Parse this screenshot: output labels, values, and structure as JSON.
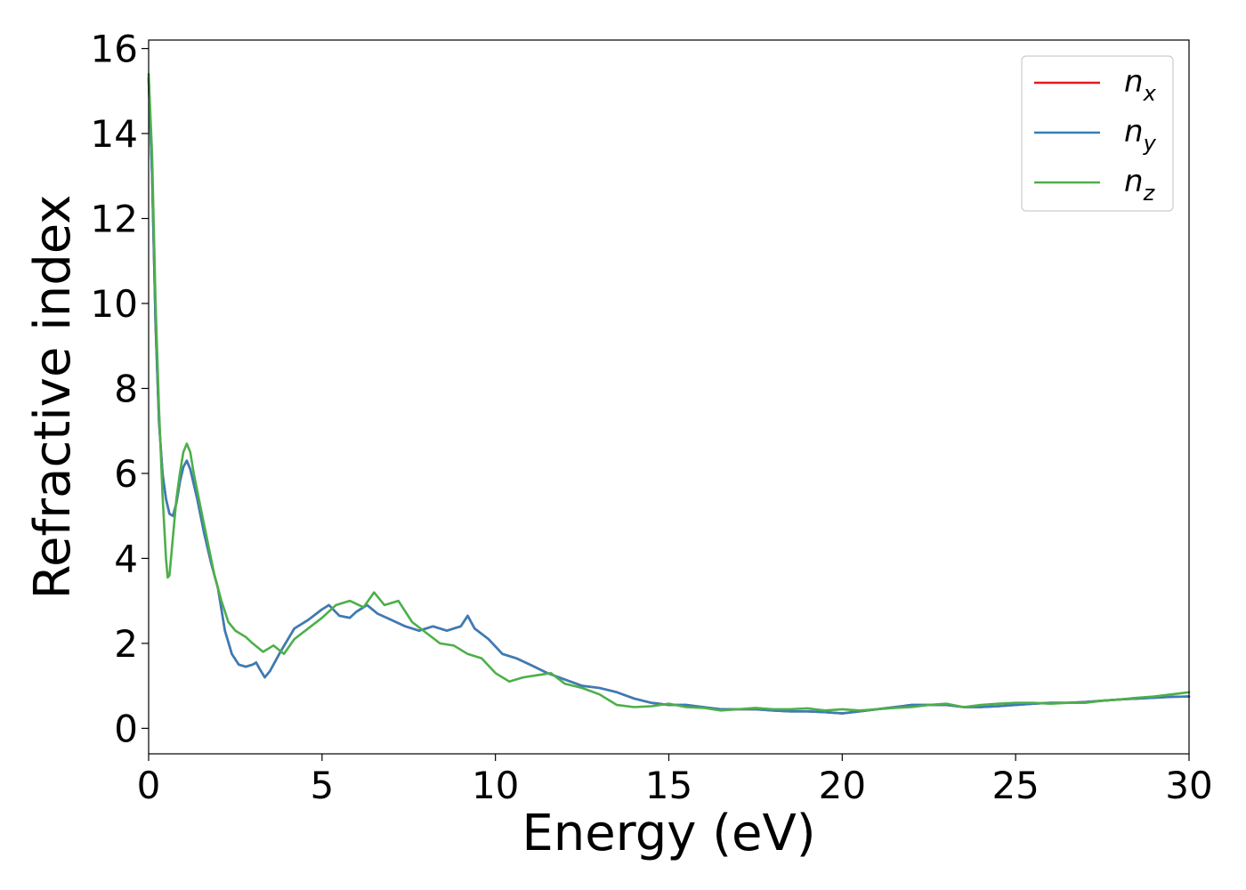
{
  "chart_data": {
    "type": "line",
    "title": "",
    "xlabel": "Energy (eV)",
    "ylabel": "Refractive index",
    "xlim": [
      0,
      30
    ],
    "ylim": [
      -0.6,
      16.2
    ],
    "xticks": [
      0,
      5,
      10,
      15,
      20,
      25,
      30
    ],
    "yticks": [
      0,
      2,
      4,
      6,
      8,
      10,
      12,
      14,
      16
    ],
    "grid": false,
    "legend_position": "top-right",
    "series": [
      {
        "name": "n_x",
        "legend_base": "n",
        "legend_sub": "x",
        "color": "#e41a1c",
        "x": [
          0,
          0.1,
          0.2,
          0.3,
          0.4,
          0.5,
          0.6,
          0.7,
          0.8,
          0.9,
          1.0,
          1.1,
          1.2,
          1.4,
          1.6,
          1.8,
          2.0,
          2.2,
          2.4,
          2.6,
          2.8,
          3.0,
          3.1,
          3.2,
          3.35,
          3.5,
          3.8,
          4.2,
          4.6,
          5.0,
          5.2,
          5.5,
          5.8,
          6.0,
          6.3,
          6.6,
          7.0,
          7.4,
          7.8,
          8.2,
          8.6,
          9.0,
          9.2,
          9.4,
          9.8,
          10.2,
          10.6,
          11.0,
          11.5,
          12.0,
          12.5,
          13.0,
          13.5,
          14.0,
          14.5,
          15.0,
          15.5,
          16.0,
          16.5,
          17.0,
          17.5,
          18.0,
          18.5,
          19.0,
          19.5,
          20.0,
          20.5,
          21.0,
          21.5,
          22.0,
          22.5,
          23.0,
          23.5,
          24.0,
          24.5,
          25.0,
          25.5,
          26.0,
          26.5,
          27.0,
          27.5,
          28.0,
          28.5,
          29.0,
          29.5,
          30.0
        ],
        "y": [
          15.3,
          13.0,
          9.5,
          7.2,
          6.0,
          5.4,
          5.05,
          5.0,
          5.3,
          5.8,
          6.15,
          6.3,
          6.1,
          5.4,
          4.6,
          3.9,
          3.3,
          2.3,
          1.75,
          1.5,
          1.45,
          1.5,
          1.55,
          1.4,
          1.2,
          1.35,
          1.8,
          2.35,
          2.55,
          2.8,
          2.9,
          2.65,
          2.6,
          2.75,
          2.9,
          2.7,
          2.55,
          2.4,
          2.3,
          2.4,
          2.3,
          2.4,
          2.65,
          2.35,
          2.1,
          1.75,
          1.65,
          1.5,
          1.3,
          1.15,
          1.0,
          0.95,
          0.85,
          0.7,
          0.6,
          0.55,
          0.55,
          0.5,
          0.45,
          0.45,
          0.45,
          0.42,
          0.4,
          0.4,
          0.38,
          0.35,
          0.4,
          0.45,
          0.5,
          0.55,
          0.55,
          0.55,
          0.5,
          0.5,
          0.52,
          0.55,
          0.58,
          0.6,
          0.6,
          0.62,
          0.65,
          0.68,
          0.7,
          0.72,
          0.74,
          0.75
        ]
      },
      {
        "name": "n_y",
        "legend_base": "n",
        "legend_sub": "y",
        "color": "#377eb8",
        "x": [
          0,
          0.1,
          0.2,
          0.3,
          0.4,
          0.5,
          0.6,
          0.7,
          0.8,
          0.9,
          1.0,
          1.1,
          1.2,
          1.4,
          1.6,
          1.8,
          2.0,
          2.2,
          2.4,
          2.6,
          2.8,
          3.0,
          3.1,
          3.2,
          3.35,
          3.5,
          3.8,
          4.2,
          4.6,
          5.0,
          5.2,
          5.5,
          5.8,
          6.0,
          6.3,
          6.6,
          7.0,
          7.4,
          7.8,
          8.2,
          8.6,
          9.0,
          9.2,
          9.4,
          9.8,
          10.2,
          10.6,
          11.0,
          11.5,
          12.0,
          12.5,
          13.0,
          13.5,
          14.0,
          14.5,
          15.0,
          15.5,
          16.0,
          16.5,
          17.0,
          17.5,
          18.0,
          18.5,
          19.0,
          19.5,
          20.0,
          20.5,
          21.0,
          21.5,
          22.0,
          22.5,
          23.0,
          23.5,
          24.0,
          24.5,
          25.0,
          25.5,
          26.0,
          26.5,
          27.0,
          27.5,
          28.0,
          28.5,
          29.0,
          29.5,
          30.0
        ],
        "y": [
          15.3,
          13.0,
          9.5,
          7.2,
          6.0,
          5.4,
          5.05,
          5.0,
          5.3,
          5.8,
          6.15,
          6.3,
          6.1,
          5.4,
          4.6,
          3.9,
          3.3,
          2.3,
          1.75,
          1.5,
          1.45,
          1.5,
          1.55,
          1.4,
          1.2,
          1.35,
          1.8,
          2.35,
          2.55,
          2.8,
          2.9,
          2.65,
          2.6,
          2.75,
          2.9,
          2.7,
          2.55,
          2.4,
          2.3,
          2.4,
          2.3,
          2.4,
          2.65,
          2.35,
          2.1,
          1.75,
          1.65,
          1.5,
          1.3,
          1.15,
          1.0,
          0.95,
          0.85,
          0.7,
          0.6,
          0.55,
          0.55,
          0.5,
          0.45,
          0.45,
          0.45,
          0.42,
          0.4,
          0.4,
          0.38,
          0.35,
          0.4,
          0.45,
          0.5,
          0.55,
          0.55,
          0.55,
          0.5,
          0.5,
          0.52,
          0.55,
          0.58,
          0.6,
          0.6,
          0.62,
          0.65,
          0.68,
          0.7,
          0.72,
          0.74,
          0.75
        ]
      },
      {
        "name": "n_z",
        "legend_base": "n",
        "legend_sub": "z",
        "color": "#4daf4a",
        "x": [
          0,
          0.1,
          0.2,
          0.3,
          0.4,
          0.5,
          0.55,
          0.6,
          0.7,
          0.8,
          0.9,
          1.0,
          1.1,
          1.2,
          1.3,
          1.5,
          1.7,
          1.9,
          2.1,
          2.3,
          2.5,
          2.8,
          3.0,
          3.3,
          3.6,
          3.9,
          4.2,
          4.6,
          5.0,
          5.4,
          5.8,
          6.2,
          6.5,
          6.8,
          7.2,
          7.6,
          8.0,
          8.4,
          8.8,
          9.2,
          9.6,
          10.0,
          10.4,
          10.8,
          11.2,
          11.6,
          12.0,
          12.5,
          13.0,
          13.5,
          14.0,
          14.5,
          15.0,
          15.5,
          16.0,
          16.5,
          17.0,
          17.5,
          18.0,
          18.5,
          19.0,
          19.5,
          20.0,
          20.5,
          21.0,
          21.5,
          22.0,
          22.5,
          23.0,
          23.5,
          24.0,
          24.5,
          25.0,
          25.5,
          26.0,
          26.5,
          27.0,
          27.5,
          28.0,
          28.5,
          29.0,
          29.5,
          30.0
        ],
        "y": [
          15.4,
          13.5,
          10.0,
          7.5,
          5.5,
          4.0,
          3.55,
          3.6,
          4.5,
          5.4,
          6.0,
          6.5,
          6.7,
          6.5,
          6.0,
          5.2,
          4.4,
          3.6,
          3.0,
          2.5,
          2.3,
          2.15,
          2.0,
          1.8,
          1.95,
          1.75,
          2.1,
          2.35,
          2.6,
          2.9,
          3.0,
          2.85,
          3.2,
          2.9,
          3.0,
          2.5,
          2.25,
          2.0,
          1.95,
          1.75,
          1.65,
          1.3,
          1.1,
          1.2,
          1.25,
          1.3,
          1.05,
          0.95,
          0.8,
          0.55,
          0.5,
          0.52,
          0.58,
          0.5,
          0.48,
          0.42,
          0.45,
          0.48,
          0.45,
          0.45,
          0.47,
          0.42,
          0.45,
          0.42,
          0.45,
          0.48,
          0.5,
          0.55,
          0.58,
          0.5,
          0.55,
          0.58,
          0.6,
          0.6,
          0.58,
          0.6,
          0.6,
          0.65,
          0.68,
          0.72,
          0.75,
          0.8,
          0.85
        ]
      }
    ]
  }
}
